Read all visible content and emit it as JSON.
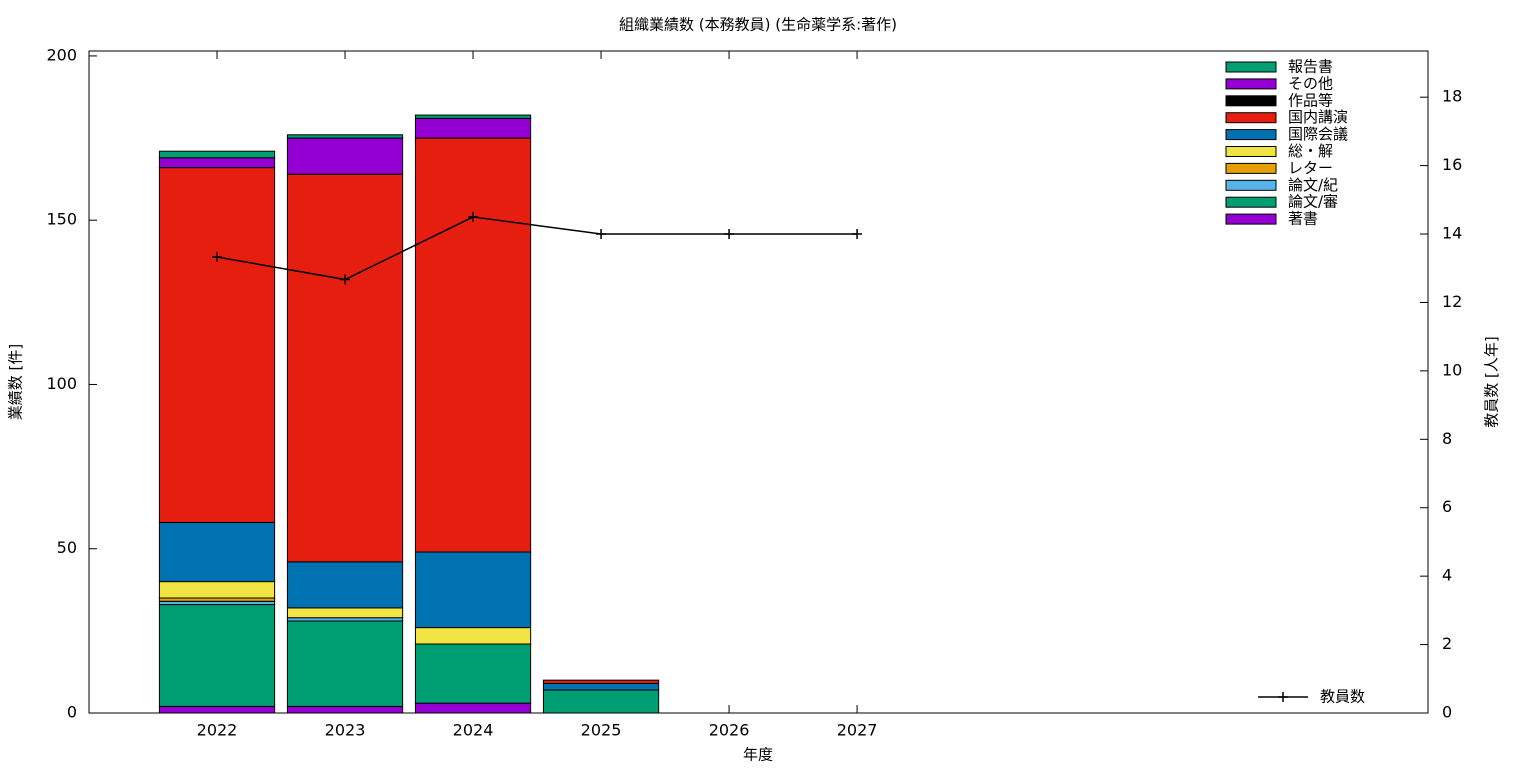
{
  "chart_data": {
    "type": "bar",
    "stacked": true,
    "title": "組織業績数 (本務教員) (生命薬学系:著作)",
    "x_label": "年度",
    "y_label": "業績数 [件]",
    "y2_label": "教員数 [人年]",
    "x": [
      2022,
      2023,
      2024,
      2025,
      2026,
      2027
    ],
    "xlim": [
      2021,
      2031.46
    ],
    "xticks": [
      2022,
      2023,
      2024,
      2025,
      2026,
      2027
    ],
    "ylim": [
      0,
      201.5
    ],
    "yticks": [
      0,
      50,
      100,
      150,
      200
    ],
    "y2lim": [
      0,
      19.35
    ],
    "y2ticks": [
      0,
      2,
      4,
      6,
      8,
      10,
      12,
      14,
      16,
      18
    ],
    "legend": "upper right",
    "series": [
      {
        "name": "著書",
        "color": "#9400d3",
        "values": [
          2,
          2,
          3,
          0,
          null,
          null
        ]
      },
      {
        "name": "論文/審",
        "color": "#009e73",
        "values": [
          31,
          26,
          18,
          7,
          null,
          null
        ]
      },
      {
        "name": "論文/紀",
        "color": "#56b4e9",
        "values": [
          1,
          1,
          0,
          0,
          null,
          null
        ]
      },
      {
        "name": "レター",
        "color": "#e69f00",
        "values": [
          1,
          0,
          0,
          0,
          null,
          null
        ]
      },
      {
        "name": "総・解",
        "color": "#f0e442",
        "values": [
          5,
          3,
          5,
          0,
          null,
          null
        ]
      },
      {
        "name": "国際会議",
        "color": "#0072b2",
        "values": [
          18,
          14,
          23,
          2,
          null,
          null
        ]
      },
      {
        "name": "国内講演",
        "color": "#e51e10",
        "values": [
          108,
          118,
          126,
          1,
          null,
          null
        ]
      },
      {
        "name": "作品等",
        "color": "#000000",
        "values": [
          0,
          0,
          0,
          0,
          null,
          null
        ]
      },
      {
        "name": "その他",
        "color": "#9400d3",
        "values": [
          3,
          11,
          6,
          0,
          null,
          null
        ]
      },
      {
        "name": "報告書",
        "color": "#009e73",
        "values": [
          2,
          1,
          1,
          0,
          null,
          null
        ]
      },
      {
        "name": "教員数",
        "type": "line",
        "axis": "y2",
        "color": "#000000",
        "values": [
          13.33,
          12.67,
          14.5,
          14,
          14,
          14
        ]
      }
    ]
  }
}
